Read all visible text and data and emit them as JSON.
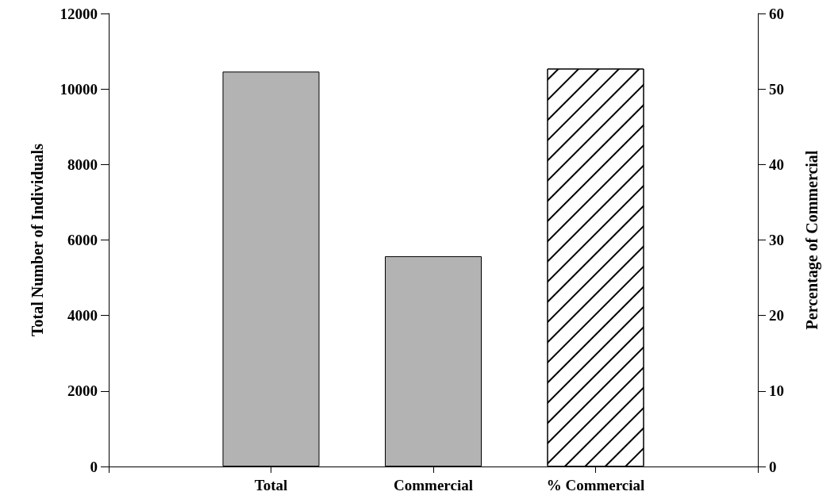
{
  "chart_data": {
    "type": "bar",
    "ylabel": "Total Number of Individuals",
    "y2label": "Percentage of Commercial",
    "categories": [
      null,
      "Total",
      "Commercial",
      "% Commercial",
      null
    ],
    "series": [
      {
        "color": "#b3b3b3",
        "values": [
          null,
          10460,
          5570,
          null,
          null
        ]
      },
      {
        "color": "#ffffff",
        "axis": "y2",
        "values": [
          null,
          null,
          null,
          52.7,
          null
        ]
      }
    ],
    "ylim": [
      0,
      12000
    ],
    "yticks": [
      0,
      2000,
      4000,
      6000,
      8000,
      10000,
      12000
    ],
    "y2lim": [
      0,
      60
    ],
    "y2ticks": [
      0,
      10,
      20,
      30,
      40,
      50,
      60
    ],
    "grid": false
  }
}
